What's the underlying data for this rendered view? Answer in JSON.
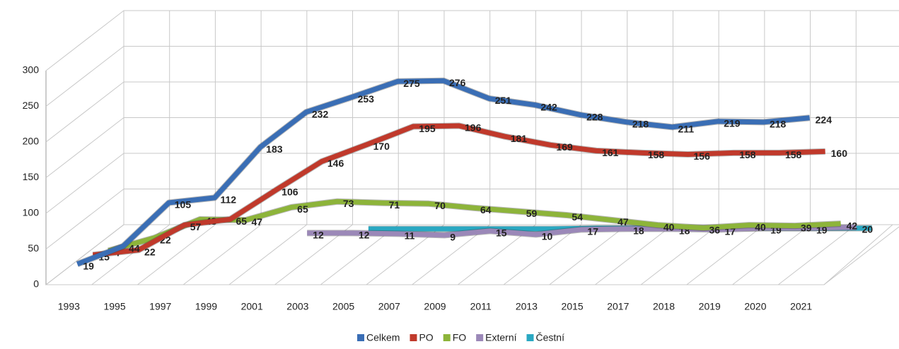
{
  "chart_data": {
    "type": "line3d",
    "categories": [
      "1993",
      "1995",
      "1997",
      "1999",
      "2001",
      "2003",
      "2005",
      "2007",
      "2009",
      "2011",
      "2013",
      "2015",
      "2017",
      "2018",
      "2019",
      "2020",
      "2021"
    ],
    "series": [
      {
        "name": "Celkem",
        "color": "#3a6eb5",
        "values": [
          19,
          44,
          105,
          112,
          183,
          232,
          253,
          275,
          276,
          251,
          242,
          228,
          218,
          211,
          219,
          218,
          224
        ],
        "show_labels": true
      },
      {
        "name": "PO",
        "color": "#c0392b",
        "values": [
          15,
          22,
          57,
          65,
          106,
          146,
          170,
          195,
          196,
          181,
          169,
          161,
          158,
          156,
          158,
          158,
          160
        ],
        "show_labels": true
      },
      {
        "name": "FO",
        "color": "#8db43a",
        "values": [
          4,
          22,
          48,
          47,
          65,
          73,
          71,
          70,
          64,
          59,
          54,
          47,
          40,
          36,
          40,
          39,
          42
        ],
        "show_labels": true
      },
      {
        "name": "Externí",
        "color": "#9b88b8",
        "values": [
          null,
          null,
          null,
          null,
          12,
          12,
          11,
          9,
          15,
          10,
          17,
          18,
          18,
          17,
          19,
          19,
          20
        ],
        "show_labels": true
      },
      {
        "name": "Čestní",
        "color": "#2aa8c2",
        "values": [
          null,
          null,
          null,
          null,
          null,
          1,
          1,
          1,
          1,
          1,
          2,
          2,
          2,
          2,
          2,
          2,
          2
        ],
        "show_labels": false
      }
    ],
    "ylim": [
      0,
      300
    ],
    "yticks": [
      0,
      50,
      100,
      150,
      200,
      250,
      300
    ],
    "grid": true,
    "legend": "bottom"
  }
}
